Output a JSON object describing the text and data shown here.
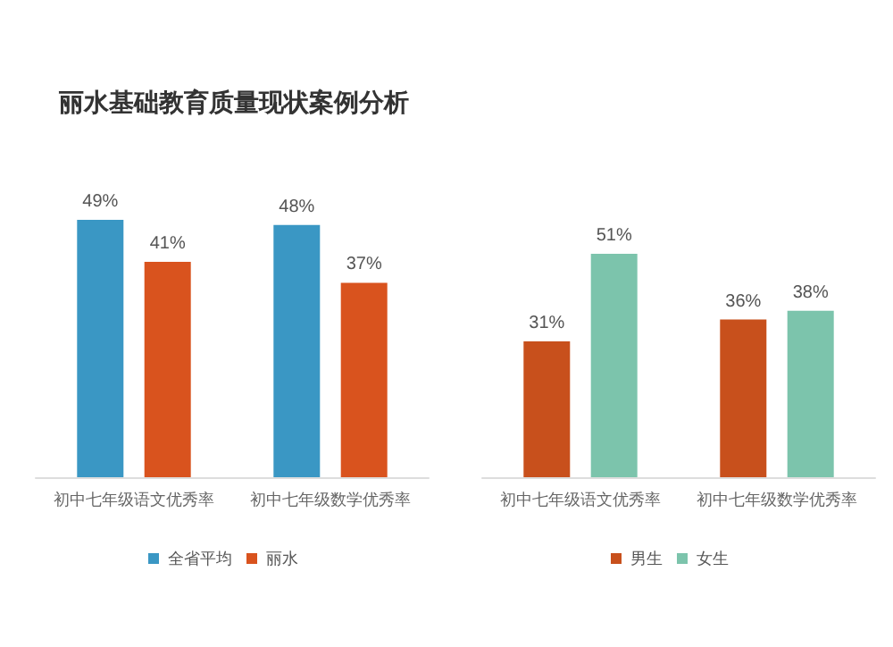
{
  "chart_data": [
    {
      "type": "bar",
      "title": "丽水基础教育质量现状案例分析",
      "categories": [
        "初中七年级语文优秀率",
        "初中七年级数学优秀率"
      ],
      "series": [
        {
          "name": "全省平均",
          "color": "#3a97c4",
          "values": [
            49,
            48
          ],
          "value_labels": [
            "49%",
            "48%"
          ]
        },
        {
          "name": "丽水",
          "color": "#d9531e",
          "values": [
            41,
            37
          ],
          "value_labels": [
            "41%",
            "37%"
          ]
        }
      ],
      "legend": "bottom"
    },
    {
      "type": "bar",
      "categories": [
        "初中七年级语文优秀率",
        "初中七年级数学优秀率"
      ],
      "series": [
        {
          "name": "男生",
          "color": "#c8501c",
          "values": [
            31,
            36
          ],
          "value_labels": [
            "31%",
            "36%"
          ]
        },
        {
          "name": "女生",
          "color": "#7cc4ac",
          "values": [
            51,
            38
          ],
          "value_labels": [
            "51%",
            "38%"
          ]
        }
      ],
      "legend": "bottom"
    }
  ]
}
